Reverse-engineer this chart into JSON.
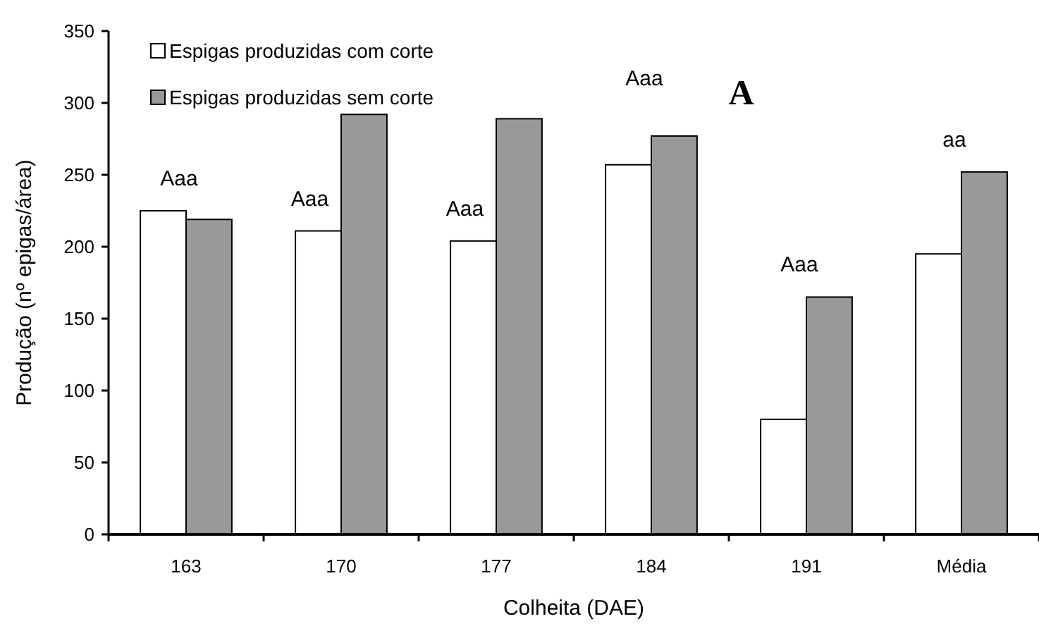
{
  "chart_data": {
    "type": "bar",
    "title": "A",
    "xlabel": "Colheita (DAE)",
    "ylabel": "Produção (nº epigas/área)",
    "categories": [
      "163",
      "170",
      "177",
      "184",
      "191",
      "Média"
    ],
    "series": [
      {
        "name": "Espigas produzidas com corte",
        "color": "#ffffff",
        "values": [
          225,
          211,
          204,
          257,
          80,
          195
        ]
      },
      {
        "name": "Espigas produzidas sem corte",
        "color": "#999999",
        "values": [
          219,
          292,
          289,
          277,
          165,
          252
        ]
      }
    ],
    "ylim": [
      0,
      350
    ],
    "yticks": [
      0,
      50,
      100,
      150,
      200,
      250,
      300,
      350
    ],
    "grid": false,
    "legend": "top left",
    "annotations": [
      "Aaa",
      "Aaa",
      "Aaa",
      "Aaa",
      "Aaa",
      "aa"
    ]
  }
}
